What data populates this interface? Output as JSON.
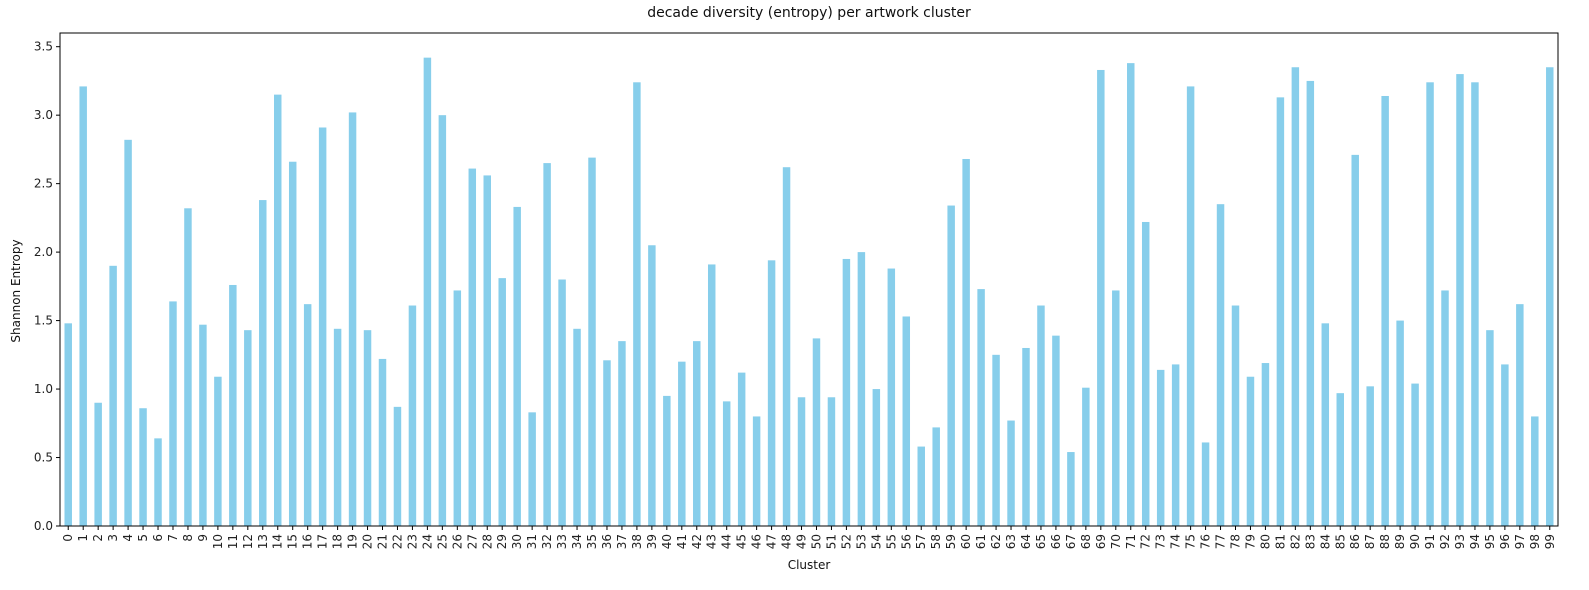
{
  "chart_data": {
    "type": "bar",
    "title": "decade diversity (entropy) per artwork cluster",
    "xlabel": "Cluster",
    "ylabel": "Shannon Entropy",
    "ylim": [
      0,
      3.6
    ],
    "yticks": [
      "0.0",
      "0.5",
      "1.0",
      "1.5",
      "2.0",
      "2.5",
      "3.0",
      "3.5"
    ],
    "bar_color": "#87CEEB",
    "grid": false,
    "categories": [
      "0",
      "1",
      "2",
      "3",
      "4",
      "5",
      "6",
      "7",
      "8",
      "9",
      "10",
      "11",
      "12",
      "13",
      "14",
      "15",
      "16",
      "17",
      "18",
      "19",
      "20",
      "21",
      "22",
      "23",
      "24",
      "25",
      "26",
      "27",
      "28",
      "29",
      "30",
      "31",
      "32",
      "33",
      "34",
      "35",
      "36",
      "37",
      "38",
      "39",
      "40",
      "41",
      "42",
      "43",
      "44",
      "45",
      "46",
      "47",
      "48",
      "49",
      "50",
      "51",
      "52",
      "53",
      "54",
      "55",
      "56",
      "57",
      "58",
      "59",
      "60",
      "61",
      "62",
      "63",
      "64",
      "65",
      "66",
      "67",
      "68",
      "69",
      "70",
      "71",
      "72",
      "73",
      "74",
      "75",
      "76",
      "77",
      "78",
      "79",
      "80",
      "81",
      "82",
      "83",
      "84",
      "85",
      "86",
      "87",
      "88",
      "89",
      "90",
      "91",
      "92",
      "93",
      "94",
      "95",
      "96",
      "97",
      "98",
      "99"
    ],
    "values": [
      1.48,
      3.21,
      0.9,
      1.9,
      2.82,
      0.86,
      0.64,
      1.64,
      2.32,
      1.47,
      1.09,
      1.76,
      1.43,
      2.38,
      3.15,
      2.66,
      1.62,
      2.91,
      1.44,
      3.02,
      1.43,
      1.22,
      0.87,
      1.61,
      3.42,
      3.0,
      1.72,
      2.61,
      2.56,
      1.81,
      2.33,
      0.83,
      2.65,
      1.8,
      1.44,
      2.69,
      1.21,
      1.35,
      3.24,
      2.05,
      0.95,
      1.2,
      1.35,
      1.91,
      0.91,
      1.12,
      0.8,
      1.94,
      2.62,
      0.94,
      1.37,
      0.94,
      1.95,
      2.0,
      1.0,
      1.88,
      1.53,
      0.58,
      0.72,
      2.34,
      2.68,
      1.73,
      1.25,
      0.77,
      1.3,
      1.61,
      1.39,
      0.54,
      1.01,
      3.33,
      1.72,
      3.38,
      2.22,
      1.14,
      1.18,
      3.21,
      0.61,
      2.35,
      1.61,
      1.09,
      1.19,
      3.13,
      3.35,
      3.25,
      1.48,
      0.97,
      2.71,
      1.02,
      3.14,
      1.5,
      1.04,
      3.24,
      1.72,
      3.3,
      3.24,
      1.43,
      1.18,
      1.62,
      0.8,
      3.35
    ]
  }
}
